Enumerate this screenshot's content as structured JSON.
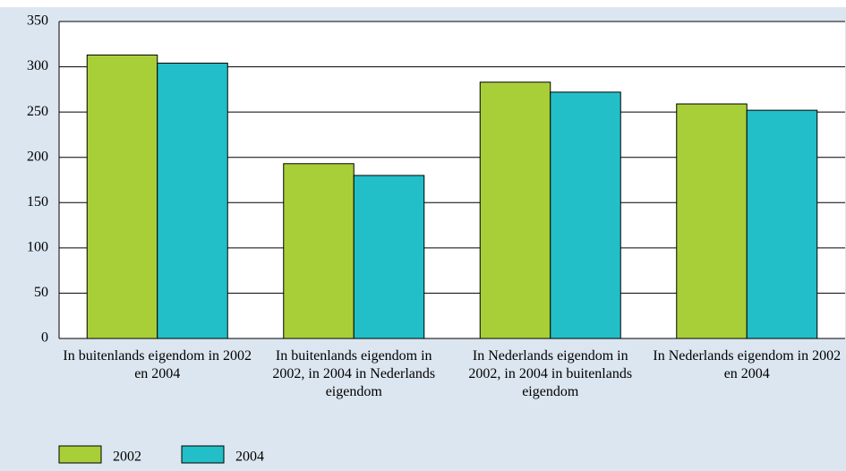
{
  "chart_data": {
    "type": "bar",
    "categories": [
      "In buitenlands eigendom in 2002 en 2004",
      "In buitenlands eigendom in 2002, in 2004 in Nederlands eigendom",
      "In Nederlands eigendom in 2002, in 2004 in buitenlands eigendom",
      "In Nederlands eigendom in 2002 en 2004"
    ],
    "series": [
      {
        "name": "2002",
        "color": "#a8cf38",
        "values": [
          313,
          193,
          283,
          259
        ]
      },
      {
        "name": "2004",
        "color": "#22bfc8",
        "values": [
          304,
          180,
          272,
          252
        ]
      }
    ],
    "ylim": [
      0,
      350
    ],
    "yticks": [
      0,
      50,
      100,
      150,
      200,
      250,
      300,
      350
    ],
    "grid": true,
    "legend": "bottom-left"
  }
}
